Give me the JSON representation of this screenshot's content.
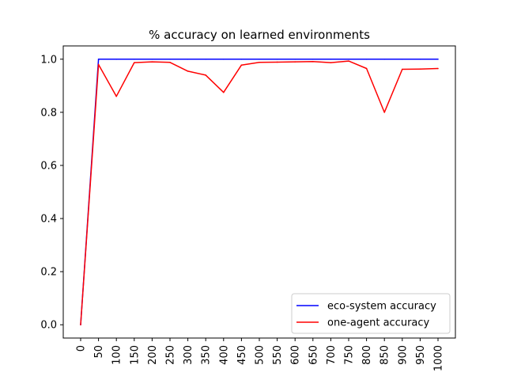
{
  "chart_data": {
    "type": "line",
    "title": "% accuracy on learned environments",
    "xlabel": "",
    "ylabel": "",
    "categories": [
      "0",
      "50",
      "100",
      "150",
      "200",
      "250",
      "300",
      "350",
      "400",
      "450",
      "500",
      "550",
      "600",
      "650",
      "700",
      "750",
      "800",
      "850",
      "900",
      "950",
      "1000"
    ],
    "y_ticks": [
      "0.0",
      "0.2",
      "0.4",
      "0.6",
      "0.8",
      "1.0"
    ],
    "ylim": [
      -0.05,
      1.05
    ],
    "grid": false,
    "legend_position": "lower-right",
    "series": [
      {
        "name": "eco-system accuracy",
        "color": "#0000ff",
        "values": [
          0.0,
          1.0,
          1.0,
          1.0,
          1.0,
          1.0,
          1.0,
          1.0,
          1.0,
          1.0,
          1.0,
          1.0,
          1.0,
          1.0,
          1.0,
          1.0,
          1.0,
          1.0,
          1.0,
          1.0,
          1.0
        ]
      },
      {
        "name": "one-agent accuracy",
        "color": "#ff0000",
        "values": [
          0.0,
          0.98,
          0.86,
          0.987,
          0.99,
          0.988,
          0.955,
          0.94,
          0.875,
          0.978,
          0.988,
          0.989,
          0.99,
          0.991,
          0.987,
          0.993,
          0.965,
          0.8,
          0.962,
          0.963,
          0.965
        ]
      }
    ]
  }
}
